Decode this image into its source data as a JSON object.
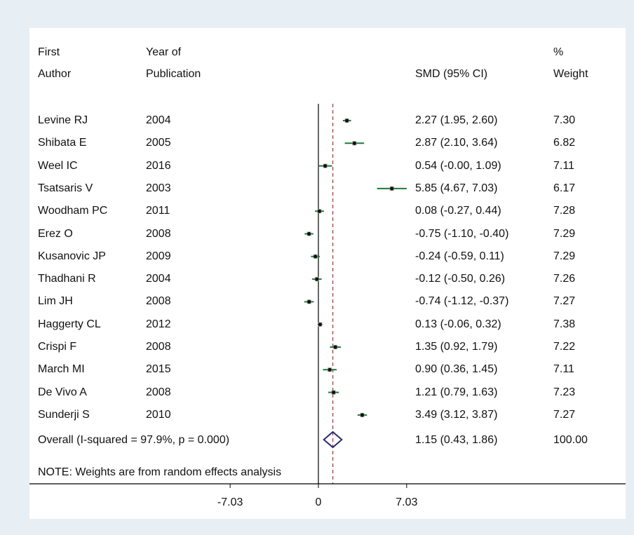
{
  "headers": {
    "col1_line1": "First",
    "col1_line2": "Author",
    "col2_line1": "Year of",
    "col2_line2": "Publication",
    "col3": "SMD (95% CI)",
    "col4_line1": "%",
    "col4_line2": "Weight"
  },
  "note": "NOTE: Weights are from random effects analysis",
  "chart_data": {
    "type": "forest",
    "x_ticks": [
      -7.03,
      0,
      7.03
    ],
    "x_tick_labels": [
      "-7.03",
      "0",
      "7.03"
    ],
    "null_line": 0,
    "studies": [
      {
        "author": "Levine RJ",
        "year": "2004",
        "smd": 2.27,
        "lo": 1.95,
        "hi": 2.6,
        "ci_text": "2.27 (1.95, 2.60)",
        "weight": "7.30"
      },
      {
        "author": "Shibata E",
        "year": "2005",
        "smd": 2.87,
        "lo": 2.1,
        "hi": 3.64,
        "ci_text": "2.87 (2.10, 3.64)",
        "weight": "6.82"
      },
      {
        "author": "Weel IC",
        "year": "2016",
        "smd": 0.54,
        "lo": -0.0,
        "hi": 1.09,
        "ci_text": "0.54 (-0.00, 1.09)",
        "weight": "7.11"
      },
      {
        "author": "Tsatsaris V",
        "year": "2003",
        "smd": 5.85,
        "lo": 4.67,
        "hi": 7.03,
        "ci_text": "5.85 (4.67, 7.03)",
        "weight": "6.17"
      },
      {
        "author": "Woodham PC",
        "year": "2011",
        "smd": 0.08,
        "lo": -0.27,
        "hi": 0.44,
        "ci_text": "0.08 (-0.27, 0.44)",
        "weight": "7.28"
      },
      {
        "author": "Erez O",
        "year": "2008",
        "smd": -0.75,
        "lo": -1.1,
        "hi": -0.4,
        "ci_text": "-0.75 (-1.10, -0.40)",
        "weight": "7.29"
      },
      {
        "author": "Kusanovic JP",
        "year": "2009",
        "smd": -0.24,
        "lo": -0.59,
        "hi": 0.11,
        "ci_text": "-0.24 (-0.59, 0.11)",
        "weight": "7.29"
      },
      {
        "author": "Thadhani R",
        "year": "2004",
        "smd": -0.12,
        "lo": -0.5,
        "hi": 0.26,
        "ci_text": "-0.12 (-0.50, 0.26)",
        "weight": "7.26"
      },
      {
        "author": "Lim JH",
        "year": "2008",
        "smd": -0.74,
        "lo": -1.12,
        "hi": -0.37,
        "ci_text": "-0.74 (-1.12, -0.37)",
        "weight": "7.27"
      },
      {
        "author": "Haggerty CL",
        "year": "2012",
        "smd": 0.13,
        "lo": -0.06,
        "hi": 0.32,
        "ci_text": "0.13 (-0.06, 0.32)",
        "weight": "7.38"
      },
      {
        "author": "Crispi F",
        "year": "2008",
        "smd": 1.35,
        "lo": 0.92,
        "hi": 1.79,
        "ci_text": "1.35 (0.92, 1.79)",
        "weight": "7.22"
      },
      {
        "author": "March MI",
        "year": "2015",
        "smd": 0.9,
        "lo": 0.36,
        "hi": 1.45,
        "ci_text": "0.90 (0.36, 1.45)",
        "weight": "7.11"
      },
      {
        "author": "De Vivo A",
        "year": "2008",
        "smd": 1.21,
        "lo": 0.79,
        "hi": 1.63,
        "ci_text": "1.21 (0.79, 1.63)",
        "weight": "7.23"
      },
      {
        "author": "Sunderji S",
        "year": "2010",
        "smd": 3.49,
        "lo": 3.12,
        "hi": 3.87,
        "ci_text": "3.49 (3.12, 3.87)",
        "weight": "7.27"
      }
    ],
    "overall": {
      "label": "Overall  (I-squared = 97.9%, p = 0.000)",
      "smd": 1.15,
      "lo": 0.43,
      "hi": 1.86,
      "ci_text": "1.15 (0.43, 1.86)",
      "weight": "100.00"
    },
    "colors": {
      "ci_line": "#1a7a3a",
      "point": "#111111",
      "overall_diamond": "#2a2a6e",
      "reference_line": "#a83232",
      "axis": "#000000",
      "background": "#e8eff4"
    }
  }
}
